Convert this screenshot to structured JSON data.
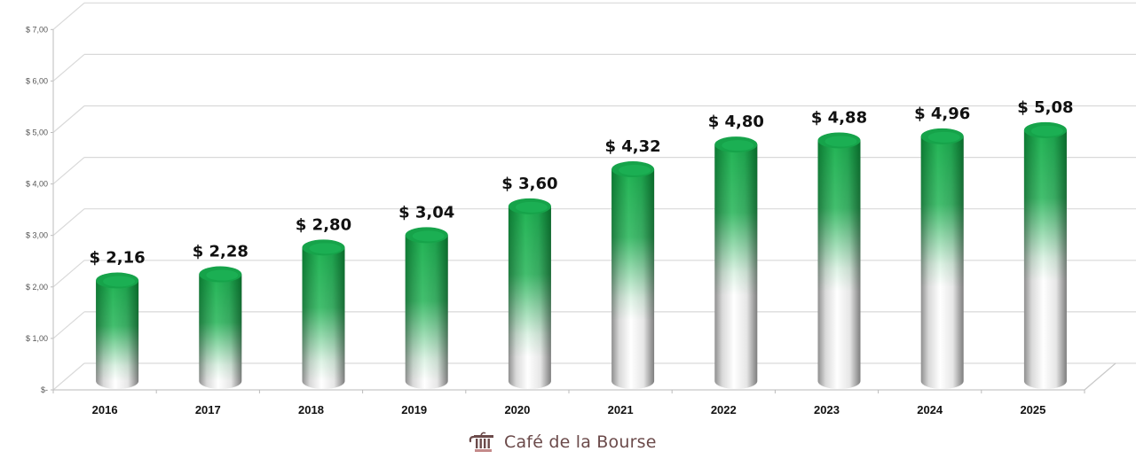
{
  "chart_data": {
    "type": "bar",
    "style": "3d-cylinder",
    "title": "",
    "xlabel": "",
    "ylabel": "",
    "categories": [
      "2016",
      "2017",
      "2018",
      "2019",
      "2020",
      "2021",
      "2022",
      "2023",
      "2024",
      "2025"
    ],
    "values": [
      2.16,
      2.28,
      2.8,
      3.04,
      3.6,
      4.32,
      4.8,
      4.88,
      4.96,
      5.08
    ],
    "data_labels": [
      "$ 2,16",
      "$ 2,28",
      "$ 2,80",
      "$ 3,04",
      "$ 3,60",
      "$ 4,32",
      "$ 4,80",
      "$ 4,88",
      "$ 4,96",
      "$ 5,08"
    ],
    "ylim": [
      0,
      7
    ],
    "yticks": [
      0,
      1,
      2,
      3,
      4,
      5,
      6,
      7
    ],
    "ytick_labels": [
      "$-",
      "$ 1,00",
      "$ 2,00",
      "$ 3,00",
      "$ 4,00",
      "$ 5,00",
      "$ 6,00",
      "$ 7,00"
    ],
    "grid": true,
    "legend": null,
    "colors": {
      "bar_top": "#0a9a3c",
      "bar_mid": "#c8f5d6",
      "bar_bottom": "#ffffff",
      "bar_shade": "#9a9a9a",
      "grid": "#d9d9d9"
    }
  },
  "branding": {
    "logo_text": "Café de la Bourse",
    "logo_icon": "cooking-pot-icon",
    "logo_color": "#6b4a4a"
  }
}
